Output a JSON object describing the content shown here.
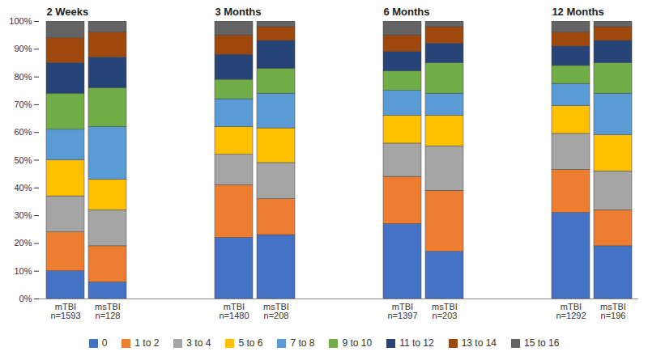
{
  "chart_data": {
    "type": "bar",
    "stacked": true,
    "legend": "bottom",
    "categories": [
      "mTBI\nn=1593",
      "msTBI\nn=128",
      "mTBI\nn=1480",
      "msTBI\nn=208",
      "mTBI\nn=1397",
      "msTBI\nn=203",
      "mTBI\nn=1292",
      "msTBI\nn=196"
    ],
    "category_groups": [
      "2 Weeks",
      "2 Weeks",
      "3 Months",
      "3 Months",
      "6 Months",
      "6 Months",
      "12 Months",
      "12 Months"
    ],
    "ylim": [
      0,
      100
    ],
    "yticks": [
      {
        "value": 0,
        "label": "0%"
      },
      {
        "value": 10,
        "label": "10%"
      },
      {
        "value": 20,
        "label": "20%"
      },
      {
        "value": 30,
        "label": "30%"
      },
      {
        "value": 40,
        "label": "40%"
      },
      {
        "value": 50,
        "label": "50%"
      },
      {
        "value": 60,
        "label": "60%"
      },
      {
        "value": 70,
        "label": "70%"
      },
      {
        "value": 80,
        "label": "80%"
      },
      {
        "value": 90,
        "label": "90%"
      },
      {
        "value": 100,
        "label": "100%"
      }
    ],
    "series": [
      {
        "name": "0",
        "color": "#4472c4",
        "values": [
          10,
          6,
          22,
          23,
          27,
          17,
          31,
          19
        ]
      },
      {
        "name": "1 to 2",
        "color": "#ed7d31",
        "values": [
          14,
          13,
          19,
          13,
          17,
          22,
          15.5,
          13
        ]
      },
      {
        "name": "3 to 4",
        "color": "#a5a5a5",
        "values": [
          13,
          13,
          11,
          13,
          12,
          16,
          13,
          14
        ]
      },
      {
        "name": "5 to 6",
        "color": "#ffc000",
        "values": [
          13,
          11,
          10,
          12.5,
          10,
          11,
          10,
          13
        ]
      },
      {
        "name": "7 to 8",
        "color": "#5b9bd5",
        "values": [
          11,
          19,
          10,
          12.5,
          9,
          8,
          8,
          15
        ]
      },
      {
        "name": "9 to 10",
        "color": "#70ad47",
        "values": [
          13,
          14,
          7,
          9,
          7,
          11,
          6.5,
          11
        ]
      },
      {
        "name": "11 to 12",
        "color": "#264478",
        "values": [
          11,
          11,
          9,
          10,
          7,
          7,
          7,
          8
        ]
      },
      {
        "name": "13 to 14",
        "color": "#9e480e",
        "values": [
          9,
          9,
          7,
          5,
          6,
          6,
          5,
          5
        ]
      },
      {
        "name": "15 to 16",
        "color": "#636363",
        "values": [
          6,
          4,
          5,
          2,
          5,
          2,
          4,
          2
        ]
      }
    ]
  }
}
